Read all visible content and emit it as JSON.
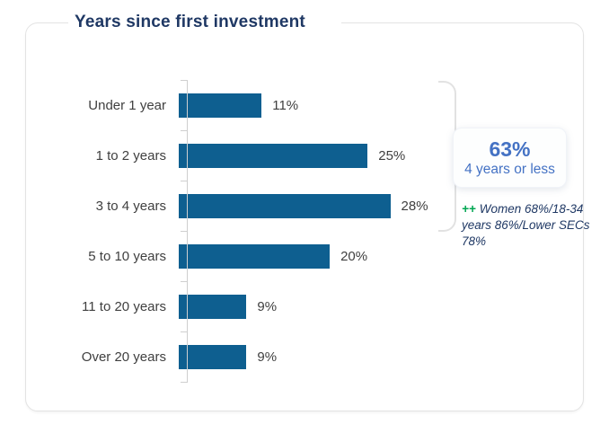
{
  "card": {
    "title": "Years since first investment"
  },
  "chart_data": {
    "type": "bar",
    "orientation": "horizontal",
    "title": "Years since first investment",
    "categories": [
      "Under 1 year",
      "1 to 2 years",
      "3 to 4 years",
      "5 to 10 years",
      "11 to 20 years",
      "Over 20 years"
    ],
    "values": [
      11,
      25,
      28,
      20,
      9,
      9
    ],
    "value_labels": [
      "11%",
      "25%",
      "28%",
      "20%",
      "9%",
      "9%"
    ],
    "unit": "%",
    "xlim": [
      0,
      28
    ],
    "grid": false,
    "legend": "none",
    "bar_color": "#0e5f90",
    "annotation": {
      "headline_value": "63%",
      "headline_label": "4 years or less",
      "note_marker": "++",
      "note_text": "Women 68%/18-34 years 86%/Lower SECs 78%",
      "bracket_span_categories": [
        "Under 1 year",
        "1 to 2 years",
        "3 to 4 years"
      ]
    }
  },
  "colors": {
    "title_navy": "#1f3864",
    "bar_blue": "#0e5f90",
    "label_gray": "#3f3f3f",
    "callout_blue": "#4472c4",
    "note_green": "#00a651",
    "axis_gray": "#cfcfcf",
    "bracket_gray": "#e2e2e2",
    "card_border": "#e3e3e3"
  }
}
